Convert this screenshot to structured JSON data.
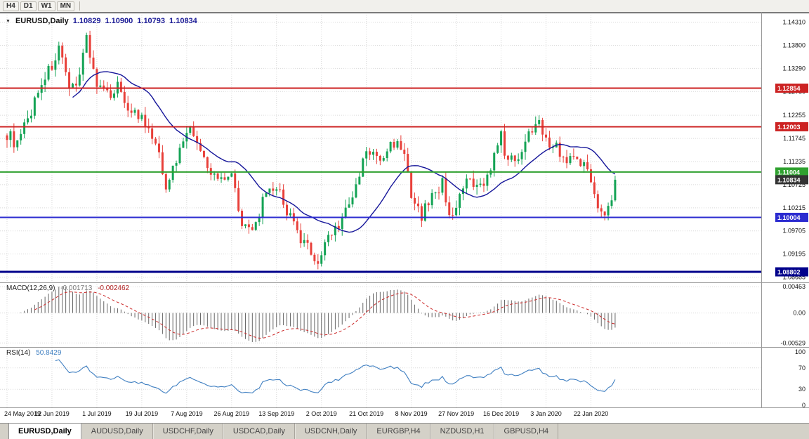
{
  "toolbar": {
    "timeframes": [
      "H4",
      "D1",
      "W1",
      "MN"
    ]
  },
  "chart": {
    "title": {
      "symbol": "EURUSD,Daily",
      "open": "1.10829",
      "high": "1.10900",
      "low": "1.10793",
      "close": "1.10834"
    },
    "price_axis_labels": [
      "1.14310",
      "1.13800",
      "1.13290",
      "1.12780",
      "1.12255",
      "1.11745",
      "1.11235",
      "1.10725",
      "1.10215",
      "1.09705",
      "1.09195",
      "1.08685"
    ],
    "hlines": [
      {
        "price": 1.12854,
        "label": "1.12854",
        "color": "#cc2222",
        "width": 2
      },
      {
        "price": 1.12003,
        "label": "1.12003",
        "color": "#cc2222",
        "width": 2
      },
      {
        "price": 1.11004,
        "label": "1.11004",
        "color": "#2fa12f",
        "width": 2
      },
      {
        "price": 1.10004,
        "label": "1.10004",
        "color": "#2b2bd0",
        "width": 2
      },
      {
        "price": 1.08802,
        "label": "1.08802",
        "color": "#00008b",
        "width": 3
      }
    ],
    "current_price": {
      "value": 1.10834,
      "label": "1.10834",
      "badge_color": "#333333"
    },
    "date_labels": [
      "24 May 2019",
      "12 Jun 2019",
      "1 Jul 2019",
      "19 Jul 2019",
      "7 Aug 2019",
      "26 Aug 2019",
      "13 Sep 2019",
      "2 Oct 2019",
      "21 Oct 2019",
      "8 Nov 2019",
      "27 Nov 2019",
      "16 Dec 2019",
      "3 Jan 2020",
      "22 Jan 2020"
    ]
  },
  "macd": {
    "label": "MACD(12,26,9)",
    "value_main": "-0.001713",
    "value_signal": "-0.002462",
    "axis_labels": [
      "0.00463",
      "0.00",
      "-0.00529"
    ]
  },
  "rsi": {
    "label": "RSI(14)",
    "value": "50.8429",
    "period": 14,
    "levels": [
      70,
      30
    ],
    "axis_labels": [
      "100",
      "70",
      "30",
      "0"
    ]
  },
  "tabs": [
    {
      "label": "EURUSD,Daily",
      "active": true
    },
    {
      "label": "AUDUSD,Daily",
      "active": false
    },
    {
      "label": "USDCHF,Daily",
      "active": false
    },
    {
      "label": "USDCAD,Daily",
      "active": false
    },
    {
      "label": "USDCNH,Daily",
      "active": false
    },
    {
      "label": "EURGBP,H4",
      "active": false
    },
    {
      "label": "NZDUSD,H1",
      "active": false
    },
    {
      "label": "GBPUSD,H4",
      "active": false
    }
  ],
  "colors": {
    "up": "#14a355",
    "down": "#e8403a",
    "ma": "#16169a",
    "grid": "#d9d9d9",
    "macd_hist": "#666666",
    "macd_signal": "#cc2a2a",
    "rsi": "#3f7fc1"
  },
  "chart_data": {
    "type": "candlestick",
    "symbol": "EURUSD",
    "timeframe": "Daily",
    "bars": 177,
    "bars_per_x_label": 13,
    "x_labels": [
      "24 May 2019",
      "12 Jun 2019",
      "1 Jul 2019",
      "19 Jul 2019",
      "7 Aug 2019",
      "26 Aug 2019",
      "13 Sep 2019",
      "2 Oct 2019",
      "21 Oct 2019",
      "8 Nov 2019",
      "27 Nov 2019",
      "16 Dec 2019",
      "3 Jan 2020",
      "22 Jan 2020"
    ],
    "price_axis_range": [
      1.0857,
      1.1452
    ],
    "last_ohlc": {
      "open": 1.10829,
      "high": 1.109,
      "low": 1.10793,
      "close": 1.10834
    },
    "key_levels": [
      1.12854,
      1.12003,
      1.11004,
      1.10004,
      1.08802
    ],
    "close_anchors": [
      [
        0,
        1.1185
      ],
      [
        3,
        1.116
      ],
      [
        6,
        1.1215
      ],
      [
        10,
        1.13
      ],
      [
        13,
        1.1335
      ],
      [
        15,
        1.1372
      ],
      [
        18,
        1.1275
      ],
      [
        21,
        1.132
      ],
      [
        23,
        1.14
      ],
      [
        26,
        1.129
      ],
      [
        29,
        1.1268
      ],
      [
        32,
        1.1292
      ],
      [
        35,
        1.1245
      ],
      [
        39,
        1.1215
      ],
      [
        43,
        1.116
      ],
      [
        46,
        1.1075
      ],
      [
        48,
        1.1105
      ],
      [
        52,
        1.1198
      ],
      [
        55,
        1.117
      ],
      [
        58,
        1.1102
      ],
      [
        61,
        1.1088
      ],
      [
        65,
        1.1098
      ],
      [
        68,
        1.0992
      ],
      [
        71,
        1.0962
      ],
      [
        74,
        1.1035
      ],
      [
        78,
        1.1068
      ],
      [
        82,
        1.1
      ],
      [
        85,
        1.0945
      ],
      [
        88,
        1.0928
      ],
      [
        90,
        1.0896
      ],
      [
        93,
        1.0962
      ],
      [
        96,
        1.0985
      ],
      [
        100,
        1.104
      ],
      [
        104,
        1.1148
      ],
      [
        108,
        1.1125
      ],
      [
        112,
        1.1168
      ],
      [
        115,
        1.1148
      ],
      [
        117,
        1.1035
      ],
      [
        120,
        1.1005
      ],
      [
        123,
        1.1048
      ],
      [
        126,
        1.1075
      ],
      [
        128,
        1.1012
      ],
      [
        130,
        1.1018
      ],
      [
        133,
        1.108
      ],
      [
        136,
        1.1062
      ],
      [
        139,
        1.1092
      ],
      [
        141,
        1.1132
      ],
      [
        143,
        1.1178
      ],
      [
        145,
        1.112
      ],
      [
        148,
        1.1138
      ],
      [
        151,
        1.1182
      ],
      [
        154,
        1.1228
      ],
      [
        156,
        1.1165
      ],
      [
        159,
        1.1158
      ],
      [
        162,
        1.1122
      ],
      [
        165,
        1.1142
      ],
      [
        167,
        1.1112
      ],
      [
        169,
        1.1088
      ],
      [
        171,
        1.1032
      ],
      [
        173,
        1.0998
      ],
      [
        175,
        1.1042
      ],
      [
        176,
        1.10834
      ]
    ],
    "indicators": [
      {
        "name": "MA",
        "period": 20,
        "color": "#16169a"
      },
      {
        "name": "MACD",
        "fast": 12,
        "slow": 26,
        "signal": 9,
        "last_main": -0.001713,
        "last_signal": -0.002462,
        "axis_range": [
          -0.00529,
          0.00463
        ]
      },
      {
        "name": "RSI",
        "period": 14,
        "last": 50.8429,
        "levels": [
          70,
          30
        ],
        "axis_range": [
          0,
          100
        ]
      }
    ]
  }
}
